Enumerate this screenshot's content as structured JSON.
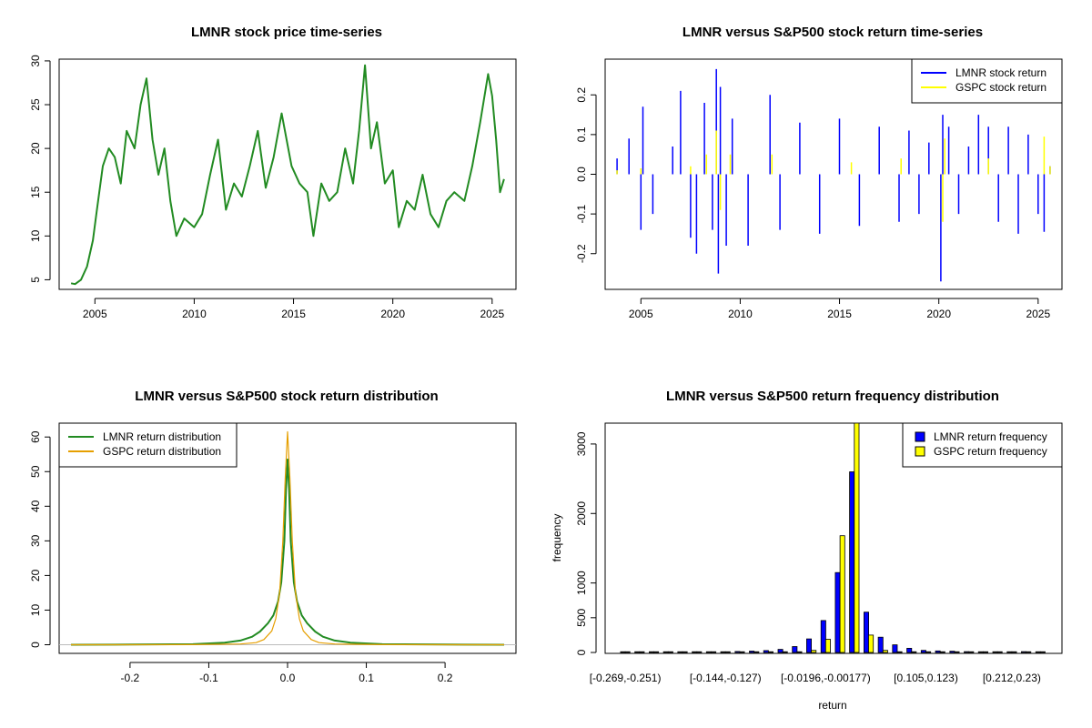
{
  "chart_data": [
    {
      "type": "line",
      "title": "LMNR stock price time-series",
      "xlabel": "",
      "ylabel": "",
      "xlim": [
        2003.2,
        2026.2
      ],
      "ylim": [
        3.9,
        30.2
      ],
      "x_ticks": [
        2005,
        2010,
        2015,
        2020,
        2025
      ],
      "x_tick_labels": [
        "2005",
        "2010",
        "2015",
        "2020",
        "2025"
      ],
      "y_ticks": [
        5,
        10,
        15,
        20,
        25,
        30
      ],
      "y_tick_labels": [
        "5",
        "10",
        "15",
        "20",
        "25",
        "30"
      ],
      "series": [
        {
          "color": "#228B22",
          "x": [
            2003.8,
            2004.0,
            2004.3,
            2004.6,
            2004.9,
            2005.1,
            2005.4,
            2005.7,
            2006.0,
            2006.3,
            2006.6,
            2007.0,
            2007.3,
            2007.6,
            2007.9,
            2008.2,
            2008.5,
            2008.8,
            2009.1,
            2009.5,
            2010.0,
            2010.4,
            2010.8,
            2011.2,
            2011.6,
            2012.0,
            2012.4,
            2012.8,
            2013.2,
            2013.6,
            2014.0,
            2014.4,
            2014.9,
            2015.3,
            2015.7,
            2016.0,
            2016.4,
            2016.8,
            2017.2,
            2017.6,
            2018.0,
            2018.3,
            2018.6,
            2018.9,
            2019.2,
            2019.6,
            2020.0,
            2020.3,
            2020.7,
            2021.1,
            2021.5,
            2021.9,
            2022.3,
            2022.7,
            2023.1,
            2023.6,
            2024.0,
            2024.4,
            2024.8,
            2025.0,
            2025.2,
            2025.4,
            2025.6
          ],
          "y": [
            4.6,
            4.5,
            5.0,
            6.5,
            9.5,
            13.0,
            18.0,
            20.0,
            19.0,
            16.0,
            22.0,
            20.0,
            25.0,
            28.0,
            21.0,
            17.0,
            20.0,
            14.0,
            10.0,
            12.0,
            11.0,
            12.5,
            17.0,
            21.0,
            13.0,
            16.0,
            14.5,
            18.0,
            22.0,
            15.5,
            19.0,
            24.0,
            18.0,
            16.0,
            15.0,
            10.0,
            16.0,
            14.0,
            15.0,
            20.0,
            16.0,
            22.0,
            29.5,
            20.0,
            23.0,
            16.0,
            17.5,
            11.0,
            14.0,
            13.0,
            17.0,
            12.5,
            11.0,
            14.0,
            15.0,
            14.0,
            18.0,
            23.0,
            28.5,
            26.0,
            21.0,
            15.0,
            16.5
          ]
        }
      ]
    },
    {
      "type": "line",
      "title": "LMNR versus S&P500 stock return time-series",
      "xlabel": "",
      "ylabel": "",
      "xlim": [
        2003.2,
        2026.2
      ],
      "ylim": [
        -0.29,
        0.29
      ],
      "x_ticks": [
        2005,
        2010,
        2015,
        2020,
        2025
      ],
      "x_tick_labels": [
        "2005",
        "2010",
        "2015",
        "2020",
        "2025"
      ],
      "y_ticks": [
        -0.2,
        -0.1,
        0.0,
        0.1,
        0.2
      ],
      "y_tick_labels": [
        "-0.2",
        "-0.1",
        "0.0",
        "0.1",
        "0.2"
      ],
      "legend_position": "top-right",
      "series": [
        {
          "name": "LMNR stock return",
          "color": "#0000FF",
          "x": [
            2003.8,
            2004.4,
            2005.0,
            2005.1,
            2005.6,
            2006.6,
            2007.0,
            2007.5,
            2007.8,
            2008.2,
            2008.6,
            2008.8,
            2008.9,
            2009.0,
            2009.3,
            2009.6,
            2010.4,
            2011.5,
            2012.0,
            2013.0,
            2014.0,
            2015.0,
            2016.0,
            2017.0,
            2018.0,
            2018.5,
            2019.0,
            2019.5,
            2020.1,
            2020.2,
            2020.5,
            2021.0,
            2021.5,
            2022.0,
            2022.5,
            2023.0,
            2023.5,
            2024.0,
            2024.5,
            2025.0,
            2025.3,
            2025.6
          ],
          "y": [
            0.04,
            0.09,
            -0.14,
            0.17,
            -0.1,
            0.07,
            0.21,
            -0.16,
            -0.2,
            0.18,
            -0.14,
            0.265,
            -0.25,
            0.22,
            -0.18,
            0.14,
            -0.18,
            0.2,
            -0.14,
            0.13,
            -0.15,
            0.14,
            -0.13,
            0.12,
            -0.12,
            0.11,
            -0.1,
            0.08,
            -0.27,
            0.15,
            0.12,
            -0.1,
            0.07,
            0.15,
            0.12,
            -0.12,
            0.12,
            -0.15,
            0.1,
            -0.1,
            -0.145,
            0.02
          ]
        },
        {
          "name": "GSPC stock return",
          "color": "#FFFF00",
          "x": [
            2003.8,
            2005.0,
            2007.5,
            2008.3,
            2008.8,
            2009.0,
            2009.5,
            2011.6,
            2015.6,
            2018.1,
            2020.2,
            2020.3,
            2022.5,
            2025.3,
            2025.6
          ],
          "y": [
            0.01,
            0.015,
            0.02,
            0.05,
            0.11,
            -0.09,
            0.05,
            0.05,
            0.03,
            0.04,
            -0.12,
            0.09,
            0.04,
            0.095,
            0.02
          ]
        }
      ]
    },
    {
      "type": "line",
      "title": "LMNR versus S&P500 stock return distribution",
      "xlabel": "",
      "ylabel": "",
      "xlim": [
        -0.29,
        0.29
      ],
      "ylim": [
        -2.5,
        64.0
      ],
      "x_ticks": [
        -0.2,
        -0.1,
        0.0,
        0.1,
        0.2
      ],
      "x_tick_labels": [
        "-0.2",
        "-0.1",
        "0.0",
        "0.1",
        "0.2"
      ],
      "y_ticks": [
        0,
        10,
        20,
        30,
        40,
        50,
        60
      ],
      "y_tick_labels": [
        "0",
        "10",
        "20",
        "30",
        "40",
        "50",
        "60"
      ],
      "legend_position": "top-left",
      "series": [
        {
          "name": "LMNR return distribution",
          "color": "#228B22",
          "x": [
            -0.275,
            -0.2,
            -0.12,
            -0.08,
            -0.06,
            -0.045,
            -0.035,
            -0.025,
            -0.018,
            -0.012,
            -0.008,
            -0.004,
            -0.002,
            0.0,
            0.002,
            0.004,
            0.008,
            0.012,
            0.018,
            0.025,
            0.035,
            0.045,
            0.06,
            0.08,
            0.12,
            0.2,
            0.275
          ],
          "y": [
            0.0,
            0.05,
            0.15,
            0.6,
            1.2,
            2.3,
            3.8,
            6.2,
            8.5,
            12.5,
            18.0,
            30.0,
            45.0,
            53.5,
            45.0,
            30.0,
            18.0,
            12.5,
            8.5,
            6.2,
            3.8,
            2.3,
            1.2,
            0.6,
            0.15,
            0.05,
            0.0
          ]
        },
        {
          "name": "GSPC return distribution",
          "color": "#E69F00",
          "x": [
            -0.275,
            -0.12,
            -0.06,
            -0.04,
            -0.03,
            -0.02,
            -0.015,
            -0.01,
            -0.006,
            -0.003,
            0.0,
            0.003,
            0.006,
            0.01,
            0.015,
            0.02,
            0.03,
            0.04,
            0.06,
            0.12,
            0.275
          ],
          "y": [
            0.0,
            0.02,
            0.2,
            0.6,
            1.5,
            4.0,
            7.5,
            15.0,
            30.0,
            48.0,
            61.5,
            48.0,
            30.0,
            15.0,
            7.5,
            4.0,
            1.5,
            0.6,
            0.2,
            0.02,
            0.0
          ]
        }
      ]
    },
    {
      "type": "bar",
      "title": "LMNR versus S&P500 return frequency distribution",
      "xlabel": "return",
      "ylabel": "frequency",
      "ylim": [
        0,
        3300
      ],
      "y_ticks": [
        0,
        500,
        1000,
        2000,
        3000
      ],
      "y_tick_labels": [
        "0",
        "500",
        "1000",
        "2000",
        "3000"
      ],
      "x_tick_labels": [
        "[-0.269,-0.251)",
        "[-0.144,-0.127)",
        "[-0.0196,-0.00177)",
        "[0.105,0.123)",
        "[0.212,0.23)"
      ],
      "x_tick_groups": [
        0,
        7,
        14,
        21,
        27
      ],
      "n_groups": 30,
      "legend_position": "top-right",
      "series": [
        {
          "name": "LMNR return frequency",
          "color": "#0000FF",
          "values": [
            1,
            2,
            1,
            2,
            3,
            5,
            8,
            10,
            14,
            20,
            28,
            45,
            85,
            195,
            460,
            1150,
            2600,
            580,
            220,
            110,
            60,
            30,
            22,
            18,
            12,
            8,
            5,
            3,
            12,
            2
          ]
        },
        {
          "name": "GSPC return frequency",
          "color": "#FFFF00",
          "values": [
            0,
            0,
            0,
            0,
            0,
            0,
            0,
            1,
            1,
            2,
            3,
            5,
            10,
            30,
            190,
            1680,
            3300,
            250,
            30,
            8,
            4,
            2,
            1,
            1,
            0,
            0,
            0,
            0,
            0,
            0
          ]
        }
      ]
    }
  ]
}
